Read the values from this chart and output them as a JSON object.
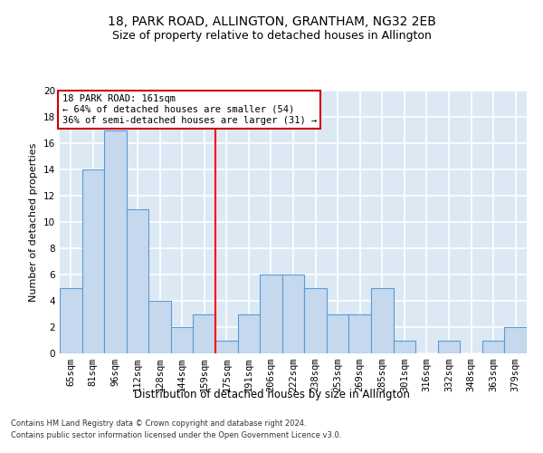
{
  "title1": "18, PARK ROAD, ALLINGTON, GRANTHAM, NG32 2EB",
  "title2": "Size of property relative to detached houses in Allington",
  "xlabel": "Distribution of detached houses by size in Allington",
  "ylabel": "Number of detached properties",
  "categories": [
    "65sqm",
    "81sqm",
    "96sqm",
    "112sqm",
    "128sqm",
    "144sqm",
    "159sqm",
    "175sqm",
    "191sqm",
    "206sqm",
    "222sqm",
    "238sqm",
    "253sqm",
    "269sqm",
    "285sqm",
    "301sqm",
    "316sqm",
    "332sqm",
    "348sqm",
    "363sqm",
    "379sqm"
  ],
  "values": [
    5,
    14,
    17,
    11,
    4,
    2,
    3,
    1,
    3,
    6,
    6,
    5,
    3,
    3,
    5,
    1,
    0,
    1,
    0,
    1,
    2
  ],
  "bar_color": "#c5d8ed",
  "bar_edge_color": "#5b9bd5",
  "bar_edge_width": 0.8,
  "background_color": "#dce9f5",
  "grid_color": "#ffffff",
  "red_line_x": 6.5,
  "annotation_text": "18 PARK ROAD: 161sqm\n← 64% of detached houses are smaller (54)\n36% of semi-detached houses are larger (31) →",
  "annotation_box_color": "#ffffff",
  "annotation_box_edge": "#cc0000",
  "footer1": "Contains HM Land Registry data © Crown copyright and database right 2024.",
  "footer2": "Contains public sector information licensed under the Open Government Licence v3.0.",
  "ylim": [
    0,
    20
  ],
  "yticks": [
    0,
    2,
    4,
    6,
    8,
    10,
    12,
    14,
    16,
    18,
    20
  ],
  "title1_fontsize": 10,
  "title2_fontsize": 9,
  "xlabel_fontsize": 8.5,
  "ylabel_fontsize": 8,
  "tick_fontsize": 7.5,
  "footer_fontsize": 6,
  "annotation_fontsize": 7.5
}
